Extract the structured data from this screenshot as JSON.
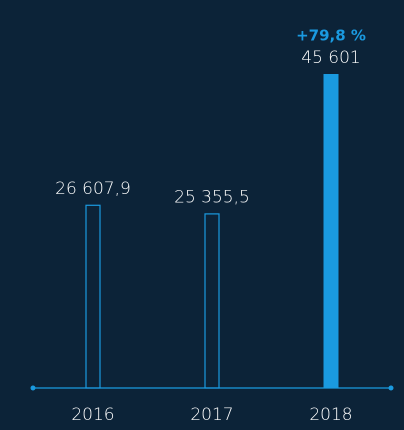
{
  "chart_data": {
    "type": "bar",
    "categories": [
      "2016",
      "2017",
      "2018"
    ],
    "values": [
      26607.9,
      25355.5,
      45601
    ],
    "value_labels": [
      "26 607,9",
      "25 355,5",
      "45 601"
    ],
    "color": "#1a9ae0",
    "filled": [
      false,
      false,
      true
    ],
    "annotations": [
      {
        "text": "+79,8 %",
        "category": 2
      }
    ]
  }
}
